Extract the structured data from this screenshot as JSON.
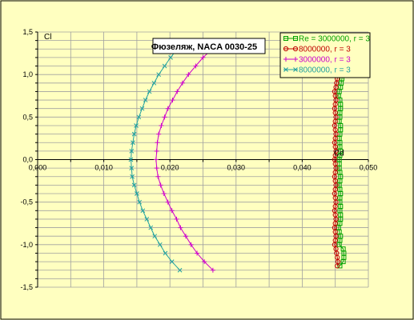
{
  "chart_data": {
    "type": "line",
    "title": "Фюзеляж, NACA 0030-25",
    "xlabel": "Cd",
    "ylabel": "Cl",
    "xlim": [
      0.0,
      0.05
    ],
    "ylim": [
      -1.5,
      1.5
    ],
    "x_ticks": [
      "0,000",
      "0,010",
      "0,020",
      "0,030",
      "0,040",
      "0,050"
    ],
    "y_ticks": [
      "1,5",
      "1,0",
      "0,5",
      "0,0",
      "-0,5",
      "-1,0",
      "-1,5"
    ],
    "grid": true,
    "legend_position": "top-right",
    "series": [
      {
        "name": "Re = 3000000, r = 3",
        "color": "#00a000",
        "marker": "square",
        "points": [
          [
            0.0457,
            -1.25
          ],
          [
            0.0462,
            -1.2
          ],
          [
            0.0463,
            -1.15
          ],
          [
            0.0463,
            -1.1
          ],
          [
            0.0462,
            -1.05
          ],
          [
            0.0456,
            -1.0
          ],
          [
            0.0457,
            -0.95
          ],
          [
            0.0458,
            -0.9
          ],
          [
            0.0456,
            -0.85
          ],
          [
            0.0455,
            -0.8
          ],
          [
            0.0457,
            -0.75
          ],
          [
            0.0458,
            -0.7
          ],
          [
            0.0458,
            -0.65
          ],
          [
            0.0457,
            -0.6
          ],
          [
            0.0458,
            -0.55
          ],
          [
            0.0457,
            -0.5
          ],
          [
            0.0457,
            -0.45
          ],
          [
            0.0458,
            -0.4
          ],
          [
            0.0457,
            -0.35
          ],
          [
            0.0456,
            -0.3
          ],
          [
            0.0457,
            -0.25
          ],
          [
            0.0458,
            -0.2
          ],
          [
            0.0457,
            -0.15
          ],
          [
            0.0456,
            -0.1
          ],
          [
            0.0456,
            -0.05
          ],
          [
            0.0456,
            0.0
          ],
          [
            0.0457,
            0.05
          ],
          [
            0.0458,
            0.1
          ],
          [
            0.0457,
            0.15
          ],
          [
            0.0457,
            0.2
          ],
          [
            0.0456,
            0.25
          ],
          [
            0.0457,
            0.3
          ],
          [
            0.0458,
            0.35
          ],
          [
            0.0458,
            0.4
          ],
          [
            0.0456,
            0.45
          ],
          [
            0.0457,
            0.5
          ],
          [
            0.0457,
            0.55
          ],
          [
            0.0458,
            0.6
          ],
          [
            0.0458,
            0.65
          ],
          [
            0.0457,
            0.7
          ],
          [
            0.0455,
            0.75
          ],
          [
            0.0456,
            0.8
          ],
          [
            0.0458,
            0.85
          ],
          [
            0.0459,
            0.9
          ],
          [
            0.046,
            0.95
          ],
          [
            0.0461,
            1.0
          ],
          [
            0.0462,
            1.05
          ],
          [
            0.0463,
            1.1
          ],
          [
            0.0465,
            1.15
          ],
          [
            0.0466,
            1.2
          ],
          [
            0.0468,
            1.25
          ],
          [
            0.047,
            1.3
          ]
        ]
      },
      {
        "name": "8000000, r = 3",
        "color": "#c00000",
        "marker": "circle",
        "points": [
          [
            0.0453,
            -1.25
          ],
          [
            0.0454,
            -1.2
          ],
          [
            0.0453,
            -1.15
          ],
          [
            0.0452,
            -1.1
          ],
          [
            0.0451,
            -1.05
          ],
          [
            0.0449,
            -1.0
          ],
          [
            0.045,
            -0.95
          ],
          [
            0.0451,
            -0.9
          ],
          [
            0.045,
            -0.85
          ],
          [
            0.0449,
            -0.8
          ],
          [
            0.045,
            -0.75
          ],
          [
            0.0451,
            -0.7
          ],
          [
            0.045,
            -0.65
          ],
          [
            0.0449,
            -0.6
          ],
          [
            0.045,
            -0.55
          ],
          [
            0.0451,
            -0.5
          ],
          [
            0.045,
            -0.45
          ],
          [
            0.0449,
            -0.4
          ],
          [
            0.045,
            -0.35
          ],
          [
            0.0451,
            -0.3
          ],
          [
            0.045,
            -0.25
          ],
          [
            0.0449,
            -0.2
          ],
          [
            0.045,
            -0.15
          ],
          [
            0.0451,
            -0.1
          ],
          [
            0.045,
            -0.05
          ],
          [
            0.0449,
            0.0
          ],
          [
            0.045,
            0.05
          ],
          [
            0.0451,
            0.1
          ],
          [
            0.045,
            0.15
          ],
          [
            0.0449,
            0.2
          ],
          [
            0.045,
            0.25
          ],
          [
            0.0451,
            0.3
          ],
          [
            0.045,
            0.35
          ],
          [
            0.0449,
            0.4
          ],
          [
            0.045,
            0.45
          ],
          [
            0.0451,
            0.5
          ],
          [
            0.045,
            0.55
          ],
          [
            0.0449,
            0.6
          ],
          [
            0.045,
            0.65
          ],
          [
            0.0451,
            0.7
          ],
          [
            0.045,
            0.75
          ],
          [
            0.0449,
            0.8
          ],
          [
            0.0451,
            0.85
          ],
          [
            0.0452,
            0.9
          ],
          [
            0.0453,
            0.95
          ],
          [
            0.0454,
            1.0
          ],
          [
            0.0455,
            1.05
          ],
          [
            0.0456,
            1.1
          ],
          [
            0.0458,
            1.15
          ],
          [
            0.046,
            1.2
          ],
          [
            0.0462,
            1.25
          ],
          [
            0.0465,
            1.3
          ]
        ]
      },
      {
        "name": "3000000, r = 3",
        "color": "#cc00cc",
        "marker": "plus",
        "points": [
          [
            0.0265,
            -1.3
          ],
          [
            0.0252,
            -1.2
          ],
          [
            0.0241,
            -1.1
          ],
          [
            0.0232,
            -1.0
          ],
          [
            0.0224,
            -0.9
          ],
          [
            0.0216,
            -0.8
          ],
          [
            0.021,
            -0.7
          ],
          [
            0.0203,
            -0.6
          ],
          [
            0.0197,
            -0.5
          ],
          [
            0.0191,
            -0.4
          ],
          [
            0.0186,
            -0.3
          ],
          [
            0.0182,
            -0.2
          ],
          [
            0.018,
            -0.1
          ],
          [
            0.0179,
            0.0
          ],
          [
            0.018,
            0.1
          ],
          [
            0.0181,
            0.2
          ],
          [
            0.0183,
            0.3
          ],
          [
            0.0187,
            0.4
          ],
          [
            0.0192,
            0.5
          ],
          [
            0.0197,
            0.6
          ],
          [
            0.0204,
            0.7
          ],
          [
            0.0211,
            0.8
          ],
          [
            0.0219,
            0.9
          ],
          [
            0.0228,
            1.0
          ],
          [
            0.0239,
            1.1
          ],
          [
            0.025,
            1.2
          ],
          [
            0.0264,
            1.3
          ]
        ]
      },
      {
        "name": "8000000, r = 3",
        "color": "#20a0a0",
        "marker": "x",
        "points": [
          [
            0.0215,
            -1.3
          ],
          [
            0.0203,
            -1.2
          ],
          [
            0.0193,
            -1.1
          ],
          [
            0.0185,
            -1.0
          ],
          [
            0.0177,
            -0.9
          ],
          [
            0.0171,
            -0.8
          ],
          [
            0.0165,
            -0.7
          ],
          [
            0.0159,
            -0.6
          ],
          [
            0.0154,
            -0.5
          ],
          [
            0.015,
            -0.4
          ],
          [
            0.0146,
            -0.3
          ],
          [
            0.0143,
            -0.2
          ],
          [
            0.0142,
            -0.1
          ],
          [
            0.0141,
            0.0
          ],
          [
            0.0142,
            0.1
          ],
          [
            0.0144,
            0.2
          ],
          [
            0.0146,
            0.3
          ],
          [
            0.0149,
            0.4
          ],
          [
            0.0153,
            0.5
          ],
          [
            0.0158,
            0.6
          ],
          [
            0.0163,
            0.7
          ],
          [
            0.0169,
            0.8
          ],
          [
            0.0176,
            0.9
          ],
          [
            0.0183,
            1.0
          ],
          [
            0.0192,
            1.1
          ],
          [
            0.0201,
            1.2
          ],
          [
            0.0211,
            1.3
          ]
        ]
      }
    ]
  }
}
